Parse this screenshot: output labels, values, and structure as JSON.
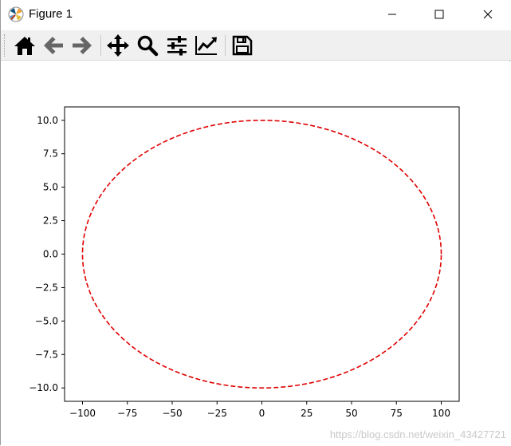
{
  "window": {
    "title": "Figure 1",
    "controls": [
      "minimize",
      "maximize",
      "close"
    ]
  },
  "toolbar": {
    "tools": [
      {
        "name": "home",
        "icon": "home-icon"
      },
      {
        "name": "back",
        "icon": "arrow-left-icon"
      },
      {
        "name": "forward",
        "icon": "arrow-right-icon"
      },
      {
        "name": "pan",
        "icon": "move-icon"
      },
      {
        "name": "zoom",
        "icon": "magnifier-icon"
      },
      {
        "name": "subplots",
        "icon": "sliders-icon"
      },
      {
        "name": "edit-axes",
        "icon": "line-chart-icon"
      },
      {
        "name": "save",
        "icon": "floppy-disk-icon"
      }
    ]
  },
  "chart_data": {
    "type": "line",
    "series": [
      {
        "equation": "x = 100 cos t, y = 10 sin t",
        "color": "#e00000",
        "linestyle": "dashed",
        "x_range": [
          -100,
          100
        ],
        "y_range": [
          -10,
          10
        ]
      }
    ],
    "xlim": [
      -110,
      110
    ],
    "ylim": [
      -11,
      11
    ],
    "xticks": [
      "−100",
      "−75",
      "−50",
      "−25",
      "0",
      "25",
      "50",
      "75",
      "100"
    ],
    "yticks": [
      "10.0",
      "7.5",
      "5.0",
      "2.5",
      "0.0",
      "−2.5",
      "−5.0",
      "−7.5",
      "−10.0"
    ],
    "grid": false,
    "title": "",
    "xlabel": "",
    "ylabel": ""
  },
  "watermark": "https://blog.csdn.net/weixin_43427721"
}
